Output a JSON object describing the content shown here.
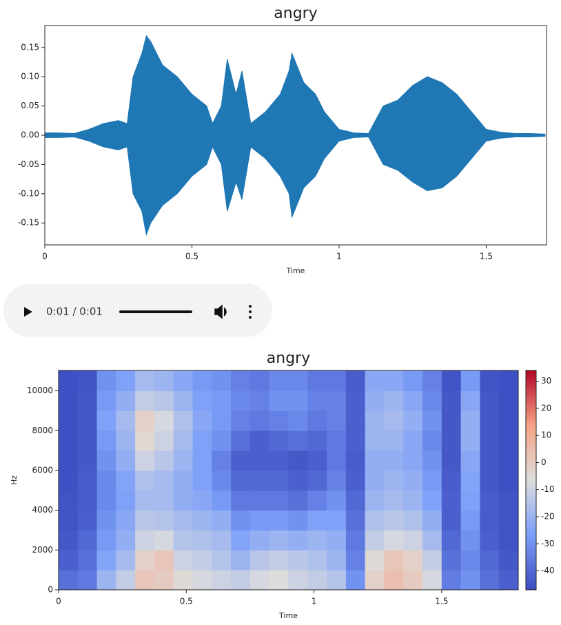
{
  "chart_data": [
    {
      "type": "area",
      "title": "angry",
      "xlabel": "Time",
      "color": "#1f77b4",
      "x": [
        0,
        0.05,
        0.1,
        0.15,
        0.2,
        0.25,
        0.28,
        0.3,
        0.33,
        0.345,
        0.36,
        0.4,
        0.45,
        0.5,
        0.55,
        0.57,
        0.6,
        0.62,
        0.65,
        0.67,
        0.7,
        0.75,
        0.8,
        0.83,
        0.84,
        0.88,
        0.92,
        0.95,
        1.0,
        1.05,
        1.1,
        1.15,
        1.2,
        1.25,
        1.3,
        1.35,
        1.4,
        1.45,
        1.5,
        1.55,
        1.6,
        1.65,
        1.7
      ],
      "upper": [
        0.004,
        0.004,
        0.003,
        0.01,
        0.02,
        0.025,
        0.02,
        0.1,
        0.14,
        0.17,
        0.16,
        0.12,
        0.1,
        0.07,
        0.05,
        0.02,
        0.05,
        0.13,
        0.07,
        0.11,
        0.02,
        0.04,
        0.07,
        0.11,
        0.14,
        0.09,
        0.07,
        0.04,
        0.01,
        0.004,
        0.003,
        0.05,
        0.06,
        0.085,
        0.1,
        0.09,
        0.07,
        0.04,
        0.01,
        0.005,
        0.003,
        0.003,
        0.002
      ],
      "lower": [
        -0.004,
        -0.004,
        -0.003,
        -0.01,
        -0.02,
        -0.025,
        -0.02,
        -0.1,
        -0.13,
        -0.17,
        -0.15,
        -0.12,
        -0.1,
        -0.07,
        -0.05,
        -0.02,
        -0.05,
        -0.13,
        -0.08,
        -0.11,
        -0.02,
        -0.04,
        -0.07,
        -0.1,
        -0.14,
        -0.09,
        -0.07,
        -0.04,
        -0.01,
        -0.004,
        -0.003,
        -0.05,
        -0.06,
        -0.08,
        -0.095,
        -0.09,
        -0.07,
        -0.04,
        -0.01,
        -0.005,
        -0.003,
        -0.003,
        -0.002
      ],
      "xlim": [
        0,
        1.705
      ],
      "xticks": [
        0,
        0.5,
        1,
        1.5
      ],
      "ylim": [
        -0.1875,
        0.1875
      ],
      "yticks": [
        {
          "value": -0.15,
          "label": "-0.15"
        },
        {
          "value": -0.1,
          "label": "-0.10"
        },
        -0.05,
        {
          "value": 0,
          "label": "0.00"
        },
        0.05,
        {
          "value": 0.1,
          "label": "0.10"
        },
        0.15
      ]
    },
    {
      "type": "heatmap",
      "title": "angry",
      "xlabel": "Time",
      "ylabel": "Hz",
      "xbins": [
        0,
        0.075,
        0.15,
        0.225,
        0.3,
        0.375,
        0.45,
        0.525,
        0.6,
        0.675,
        0.75,
        0.825,
        0.9,
        0.975,
        1.05,
        1.125,
        1.2,
        1.275,
        1.35,
        1.425,
        1.5,
        1.575,
        1.65,
        1.725,
        1.8
      ],
      "ybins": [
        0,
        1000,
        2000,
        3000,
        4000,
        5000,
        6000,
        7000,
        8000,
        9000,
        10000,
        11025
      ],
      "z": [
        [
          -38,
          -36,
          -20,
          -12,
          2,
          0,
          -5,
          -8,
          -10,
          -12,
          -8,
          -6,
          -10,
          -12,
          -15,
          -30,
          -2,
          4,
          0,
          -8,
          -35,
          -30,
          -38,
          -42
        ],
        [
          -42,
          -38,
          -25,
          -18,
          -2,
          2,
          -10,
          -12,
          -15,
          -20,
          -14,
          -12,
          -14,
          -16,
          -20,
          -34,
          -5,
          2,
          -2,
          -12,
          -38,
          -32,
          -40,
          -44
        ],
        [
          -44,
          -40,
          -28,
          -22,
          -10,
          -8,
          -15,
          -16,
          -18,
          -25,
          -22,
          -20,
          -22,
          -20,
          -22,
          -36,
          -12,
          -8,
          -10,
          -18,
          -40,
          -30,
          -42,
          -45
        ],
        [
          -45,
          -42,
          -30,
          -24,
          -14,
          -15,
          -18,
          -20,
          -22,
          -30,
          -28,
          -28,
          -30,
          -26,
          -26,
          -38,
          -16,
          -14,
          -16,
          -22,
          -42,
          -28,
          -43,
          -45
        ],
        [
          -45,
          -43,
          -32,
          -26,
          -18,
          -18,
          -22,
          -24,
          -28,
          -36,
          -36,
          -36,
          -38,
          -34,
          -30,
          -40,
          -20,
          -18,
          -20,
          -26,
          -42,
          -26,
          -43,
          -45
        ],
        [
          -46,
          -43,
          -32,
          -25,
          -16,
          -18,
          -22,
          -26,
          -32,
          -40,
          -40,
          -40,
          -42,
          -40,
          -34,
          -42,
          -22,
          -20,
          -22,
          -28,
          -43,
          -25,
          -44,
          -46
        ],
        [
          -46,
          -44,
          -30,
          -22,
          -10,
          -14,
          -20,
          -26,
          -34,
          -42,
          -42,
          -42,
          -44,
          -42,
          -36,
          -43,
          -22,
          -22,
          -24,
          -30,
          -44,
          -24,
          -44,
          -46
        ],
        [
          -46,
          -44,
          -28,
          -20,
          -4,
          -10,
          -18,
          -26,
          -30,
          -38,
          -42,
          -40,
          -38,
          -40,
          -36,
          -42,
          -20,
          -20,
          -24,
          -32,
          -44,
          -22,
          -44,
          -46
        ],
        [
          -46,
          -44,
          -26,
          -18,
          -2,
          -8,
          -16,
          -24,
          -28,
          -34,
          -36,
          -34,
          -32,
          -36,
          -34,
          -42,
          -20,
          -18,
          -22,
          -30,
          -44,
          -22,
          -44,
          -46
        ],
        [
          -46,
          -44,
          -28,
          -22,
          -12,
          -14,
          -20,
          -26,
          -28,
          -32,
          -34,
          -30,
          -30,
          -34,
          -34,
          -42,
          -22,
          -20,
          -24,
          -32,
          -44,
          -24,
          -44,
          -46
        ],
        [
          -46,
          -45,
          -30,
          -26,
          -18,
          -20,
          -24,
          -28,
          -30,
          -34,
          -36,
          -32,
          -32,
          -36,
          -36,
          -43,
          -24,
          -24,
          -28,
          -34,
          -45,
          -28,
          -45,
          -46
        ]
      ],
      "colormap": "coolwarm",
      "zlim": [
        -47,
        34
      ],
      "zticks": [
        -40,
        -30,
        -20,
        -10,
        0,
        10,
        20,
        30
      ],
      "xlim": [
        0,
        1.8
      ],
      "xticks": [
        0,
        0.5,
        1,
        1.5
      ],
      "ylim": [
        0,
        11025
      ],
      "yticks": [
        0,
        2000,
        4000,
        6000,
        8000,
        10000
      ]
    }
  ],
  "audio_player": {
    "time": "0:01 / 0:01"
  }
}
